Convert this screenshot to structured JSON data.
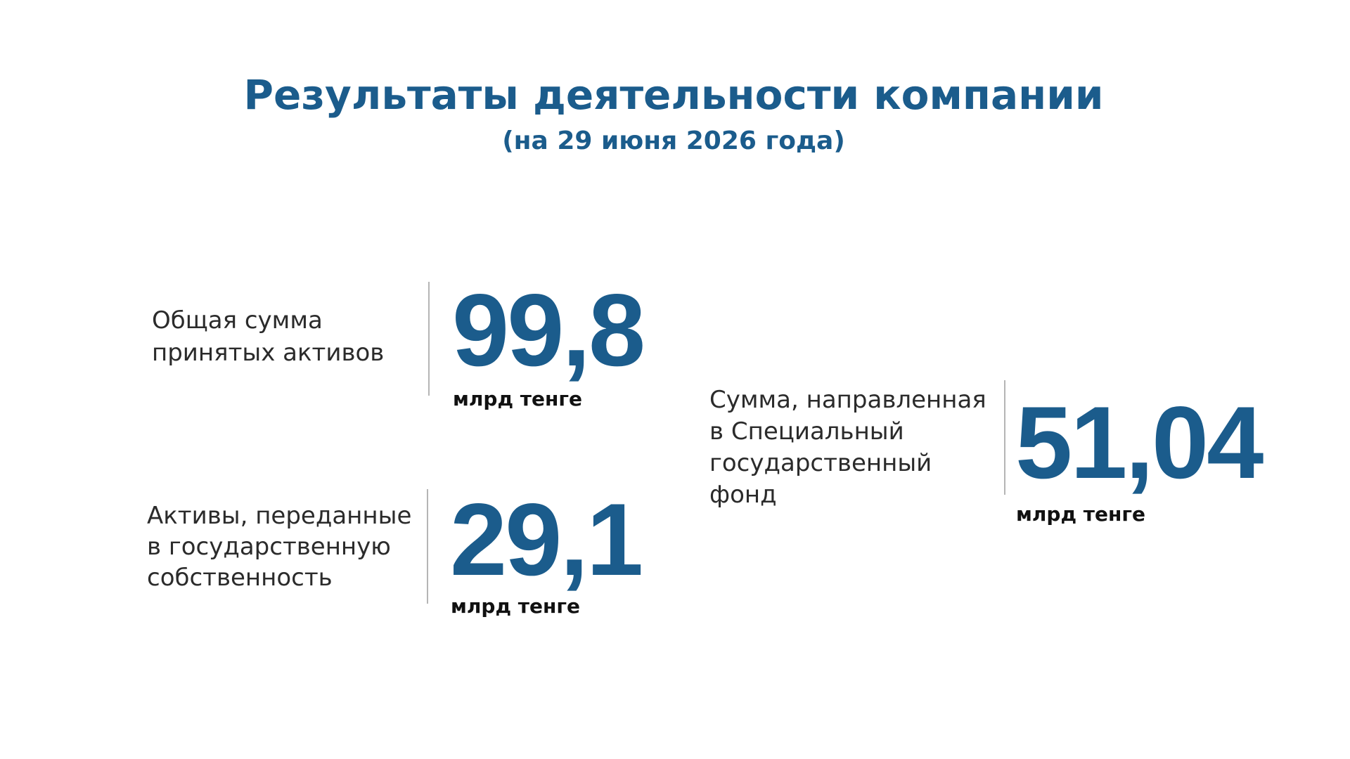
{
  "header": {
    "title": "Результаты деятельности компании",
    "subtitle": "(на 29 июня 2026 года)"
  },
  "stats": [
    {
      "label_lines": [
        "Общая сумма",
        "принятых активов"
      ],
      "value": "99,8",
      "unit": "млрд тенге"
    },
    {
      "label_lines": [
        "Активы, переданные",
        "в государственную",
        "собственность"
      ],
      "value": "29,1",
      "unit": "млрд тенге"
    },
    {
      "label_lines": [
        "Сумма, направленная",
        "в Специальный",
        "государственный",
        "фонд"
      ],
      "value": "51,04",
      "unit": "млрд тенге"
    }
  ]
}
